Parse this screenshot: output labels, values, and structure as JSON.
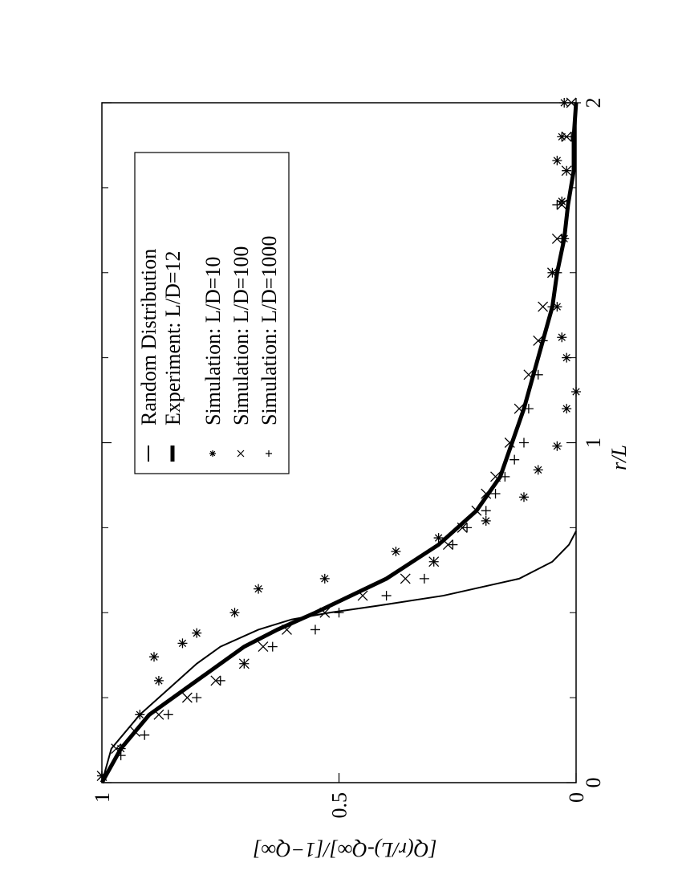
{
  "chart_data": {
    "type": "scatter",
    "x_label": "r/L",
    "y_label": "[Q(r/L)-Q∞]/[1−Q∞]",
    "xlim": [
      0,
      2
    ],
    "xticks": [
      0,
      1,
      2
    ],
    "xminorticks": [
      0.25,
      0.5,
      0.75,
      1.25,
      1.5,
      1.75
    ],
    "ylim": [
      0,
      1
    ],
    "yticks": [
      0,
      0.5,
      1
    ],
    "legend": "upper right",
    "series": [
      {
        "name": "Random Distribution",
        "style": "line",
        "width": 2,
        "color": "#000",
        "x": [
          0,
          0.1,
          0.2,
          0.3,
          0.35,
          0.4,
          0.45,
          0.48,
          0.5,
          0.52,
          0.55,
          0.6,
          0.65,
          0.7,
          0.74
        ],
        "values": [
          1,
          0.98,
          0.92,
          0.84,
          0.8,
          0.75,
          0.67,
          0.6,
          0.52,
          0.42,
          0.28,
          0.12,
          0.05,
          0.015,
          0
        ]
      },
      {
        "name": "Experiment: L/D=12",
        "style": "line",
        "width": 5,
        "color": "#000",
        "x": [
          0,
          0.1,
          0.2,
          0.3,
          0.4,
          0.45,
          0.5,
          0.6,
          0.7,
          0.8,
          0.9,
          1.0,
          1.1,
          1.2,
          1.3,
          1.4,
          1.5,
          1.6,
          1.7,
          1.8,
          1.9,
          2.0
        ],
        "values": [
          1,
          0.96,
          0.9,
          0.8,
          0.7,
          0.63,
          0.55,
          0.4,
          0.29,
          0.21,
          0.16,
          0.135,
          0.11,
          0.09,
          0.07,
          0.05,
          0.04,
          0.025,
          0.017,
          0.005,
          0.005,
          0
        ]
      },
      {
        "name": "Simulation: L/D=10",
        "style": "star",
        "color": "#000",
        "x": [
          0.02,
          0.1,
          0.2,
          0.3,
          0.37,
          0.41,
          0.44,
          0.5,
          0.57,
          0.6,
          0.68,
          0.72,
          0.77,
          0.84,
          0.92,
          0.99,
          1.1,
          1.15,
          1.25,
          1.31,
          1.4,
          1.5,
          1.6,
          1.71,
          1.83,
          1.9,
          2.0
        ],
        "values": [
          1.0,
          0.96,
          0.92,
          0.88,
          0.89,
          0.83,
          0.8,
          0.72,
          0.67,
          0.53,
          0.38,
          0.29,
          0.19,
          0.11,
          0.08,
          0.04,
          0.02,
          0.0,
          0.02,
          0.03,
          0.04,
          0.05,
          0.025,
          0.03,
          0.04,
          0.03,
          0.025
        ]
      },
      {
        "name": "Simulation: L/D=100",
        "style": "cross",
        "color": "#000",
        "x": [
          0.02,
          0.1,
          0.15,
          0.2,
          0.25,
          0.3,
          0.35,
          0.4,
          0.45,
          0.5,
          0.55,
          0.6,
          0.65,
          0.7,
          0.75,
          0.8,
          0.85,
          0.9,
          1.0,
          1.1,
          1.2,
          1.3,
          1.4,
          1.5,
          1.6,
          1.7,
          1.8,
          1.9,
          2.0
        ],
        "values": [
          1.0,
          0.97,
          0.93,
          0.88,
          0.82,
          0.76,
          0.7,
          0.66,
          0.61,
          0.53,
          0.45,
          0.36,
          0.3,
          0.27,
          0.24,
          0.21,
          0.19,
          0.17,
          0.14,
          0.12,
          0.1,
          0.08,
          0.07,
          0.05,
          0.04,
          0.03,
          0.02,
          0.02,
          0.01
        ]
      },
      {
        "name": "Simulation: L/D=1000",
        "style": "plus",
        "color": "#000",
        "x": [
          0.02,
          0.08,
          0.14,
          0.2,
          0.25,
          0.3,
          0.35,
          0.4,
          0.45,
          0.5,
          0.55,
          0.6,
          0.65,
          0.7,
          0.75,
          0.8,
          0.85,
          0.9,
          0.95,
          1.0,
          1.1,
          1.2,
          1.3,
          1.4,
          1.5,
          1.6,
          1.7,
          1.8,
          1.9,
          2.0
        ],
        "values": [
          1.0,
          0.96,
          0.91,
          0.86,
          0.8,
          0.75,
          0.7,
          0.64,
          0.55,
          0.5,
          0.4,
          0.32,
          0.3,
          0.26,
          0.23,
          0.19,
          0.17,
          0.15,
          0.13,
          0.11,
          0.1,
          0.08,
          0.07,
          0.05,
          0.04,
          0.03,
          0.04,
          0.02,
          0.01,
          0
        ]
      }
    ]
  }
}
